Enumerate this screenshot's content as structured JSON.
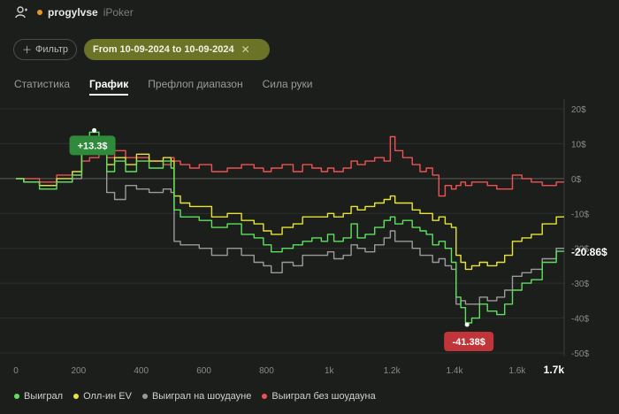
{
  "header": {
    "username": "progylvse",
    "site": "iPoker",
    "user_icon": "user-icon"
  },
  "filters": {
    "filter_label": "Фильтр",
    "date_range": "From 10-09-2024 to 10-09-2024"
  },
  "tabs": [
    {
      "label": "Статистика",
      "active": false
    },
    {
      "label": "График",
      "active": true
    },
    {
      "label": "Префлоп диапазон",
      "active": false
    },
    {
      "label": "Сила руки",
      "active": false
    }
  ],
  "chart_data": {
    "type": "line",
    "x_ticks": [
      "0",
      "200",
      "400",
      "600",
      "800",
      "1k",
      "1.2k",
      "1.4k",
      "1.6k",
      "1.7k"
    ],
    "x_tick_values": [
      0,
      200,
      400,
      600,
      800,
      1000,
      1200,
      1400,
      1600,
      1750
    ],
    "y_ticks": [
      "20$",
      "10$",
      "0$",
      "-10$",
      "-20$",
      "-30$",
      "-40$",
      "-50$"
    ],
    "y_tick_values": [
      20,
      10,
      0,
      -10,
      -20,
      -30,
      -40,
      -50
    ],
    "xlim": [
      0,
      1750
    ],
    "ylim": [
      -50,
      20
    ],
    "current_value_label": "-20.86$",
    "max_label": "+13.3$",
    "min_label": "-41.38$",
    "max_point": {
      "x": 250,
      "y": 13.3
    },
    "min_point": {
      "x": 1440,
      "y": -41.38
    },
    "colors": {
      "won": "#5ee05e",
      "allin_ev": "#e8e33a",
      "showdown": "#9a9a9a",
      "non_showdown": "#ee5252",
      "max_badge": "#2f8a3c",
      "min_badge": "#c0353a"
    },
    "series": [
      {
        "name": "Выиграл",
        "color": "#5ee05e",
        "x": [
          0,
          50,
          100,
          160,
          200,
          220,
          250,
          280,
          300,
          330,
          370,
          400,
          450,
          490,
          500,
          510,
          540,
          570,
          600,
          650,
          700,
          740,
          780,
          800,
          830,
          870,
          900,
          930,
          960,
          990,
          1000,
          1030,
          1060,
          1080,
          1100,
          1130,
          1160,
          1190,
          1200,
          1220,
          1250,
          1280,
          1300,
          1320,
          1340,
          1360,
          1380,
          1400,
          1410,
          1430,
          1440,
          1470,
          1490,
          1520,
          1550,
          1570,
          1600,
          1630,
          1660,
          1700,
          1750
        ],
        "y": [
          0,
          -1,
          -3,
          -1,
          1,
          12,
          13.3,
          12,
          2,
          5,
          2,
          5,
          3,
          5,
          3,
          -9,
          -11,
          -11,
          -12,
          -14,
          -13,
          -16,
          -17,
          -19,
          -21,
          -20,
          -19,
          -18,
          -17,
          -18,
          -16,
          -18,
          -17,
          -13,
          -17,
          -16,
          -14,
          -12,
          -11,
          -13,
          -12,
          -14,
          -15,
          -16,
          -19,
          -18,
          -20,
          -24,
          -34,
          -37,
          -41.38,
          -40,
          -36,
          -38,
          -39,
          -36,
          -32,
          -30,
          -29,
          -24,
          -20.86
        ]
      },
      {
        "name": "Олл-ин EV",
        "color": "#e8e33a",
        "x": [
          0,
          50,
          100,
          160,
          200,
          220,
          250,
          280,
          300,
          330,
          370,
          400,
          450,
          490,
          500,
          510,
          540,
          570,
          600,
          650,
          700,
          740,
          780,
          800,
          830,
          870,
          900,
          930,
          960,
          990,
          1000,
          1030,
          1060,
          1080,
          1100,
          1130,
          1160,
          1190,
          1200,
          1220,
          1250,
          1280,
          1300,
          1320,
          1340,
          1360,
          1380,
          1400,
          1410,
          1430,
          1440,
          1470,
          1490,
          1520,
          1550,
          1570,
          1600,
          1630,
          1660,
          1700,
          1750
        ],
        "y": [
          0,
          -1,
          -2,
          0,
          2,
          11,
          11.5,
          10,
          4,
          6,
          4,
          7,
          5,
          6,
          5,
          -5,
          -7,
          -8,
          -8,
          -11,
          -10,
          -12,
          -13,
          -15,
          -16,
          -14,
          -13,
          -11,
          -11,
          -11,
          -10,
          -11,
          -10,
          -8,
          -9,
          -8,
          -7,
          -6,
          -5,
          -7,
          -7,
          -9,
          -10,
          -10,
          -12,
          -11,
          -13,
          -14,
          -22,
          -24,
          -26,
          -25,
          -24,
          -25,
          -24,
          -22,
          -18,
          -17,
          -16,
          -13,
          -11
        ]
      },
      {
        "name": "Выиграл на шоудауне",
        "color": "#9a9a9a",
        "x": [
          0,
          50,
          100,
          160,
          200,
          220,
          250,
          280,
          300,
          330,
          370,
          400,
          450,
          490,
          500,
          510,
          540,
          570,
          600,
          650,
          700,
          740,
          780,
          800,
          830,
          870,
          900,
          930,
          960,
          990,
          1000,
          1030,
          1060,
          1080,
          1100,
          1130,
          1160,
          1190,
          1200,
          1220,
          1250,
          1280,
          1300,
          1320,
          1340,
          1360,
          1380,
          1400,
          1410,
          1430,
          1440,
          1470,
          1490,
          1520,
          1550,
          1570,
          1600,
          1630,
          1660,
          1700,
          1750
        ],
        "y": [
          0,
          -1,
          -2,
          -1,
          0,
          10,
          11,
          8,
          -4,
          -6,
          -2,
          -3,
          -4,
          -3,
          -4,
          -18,
          -19,
          -19,
          -20,
          -22,
          -20,
          -22,
          -24,
          -25,
          -27,
          -24,
          -25,
          -22,
          -22,
          -22,
          -21,
          -23,
          -22,
          -19,
          -20,
          -21,
          -19,
          -17,
          -15,
          -18,
          -18,
          -20,
          -22,
          -22,
          -24,
          -23,
          -25,
          -26,
          -36,
          -35,
          -36,
          -36,
          -34,
          -35,
          -34,
          -32,
          -28,
          -27,
          -26,
          -23,
          -20
        ]
      },
      {
        "name": "Выиграл без шоудауна",
        "color": "#ee5252",
        "x": [
          0,
          50,
          100,
          160,
          200,
          220,
          250,
          280,
          300,
          330,
          370,
          400,
          450,
          490,
          500,
          510,
          540,
          570,
          600,
          650,
          700,
          740,
          780,
          800,
          830,
          870,
          900,
          930,
          960,
          990,
          1000,
          1030,
          1060,
          1080,
          1100,
          1130,
          1160,
          1190,
          1200,
          1220,
          1250,
          1280,
          1300,
          1320,
          1340,
          1360,
          1380,
          1400,
          1410,
          1430,
          1440,
          1470,
          1490,
          1520,
          1550,
          1570,
          1600,
          1630,
          1660,
          1700,
          1750
        ],
        "y": [
          0,
          0,
          -1,
          1,
          1,
          5,
          6,
          7,
          6,
          8,
          6,
          6,
          5,
          4,
          6,
          5,
          4,
          3,
          4,
          2,
          3,
          4,
          3,
          2,
          3,
          4,
          2,
          4,
          3,
          2,
          3,
          2,
          3,
          5,
          4,
          5,
          6,
          5,
          12,
          8,
          6,
          4,
          2,
          3,
          1,
          -5,
          -2,
          -3,
          -2,
          -1,
          -2,
          -1,
          -1,
          -2,
          -3,
          -3,
          1,
          0,
          -1,
          -2,
          -1
        ]
      }
    ]
  },
  "legend": [
    {
      "label": "Выиграл",
      "color": "#5ee05e"
    },
    {
      "label": "Олл-ин EV",
      "color": "#e8e33a"
    },
    {
      "label": "Выиграл на шоудауне",
      "color": "#9a9a9a"
    },
    {
      "label": "Выиграл без шоудауна",
      "color": "#ee5252"
    }
  ]
}
